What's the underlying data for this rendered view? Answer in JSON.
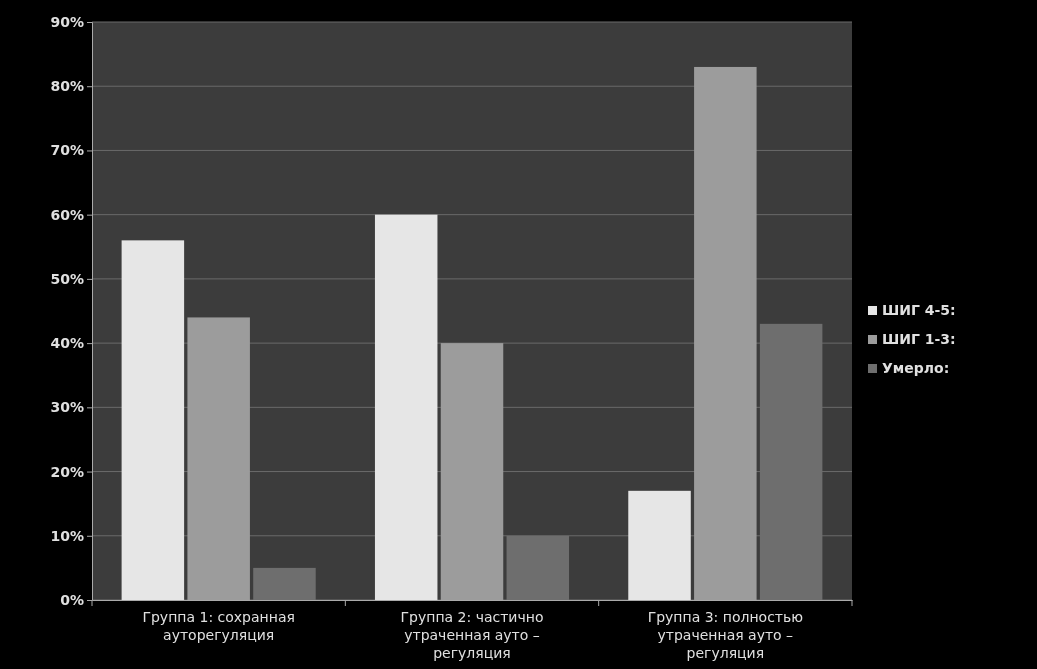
{
  "chart_data": {
    "type": "bar",
    "categories": [
      "Группа 1: сохранная ауторегуляция",
      "Группа 2: частично утраченная ауто – регуляция",
      "Группа 3: полностью утраченная ауто – регуляция"
    ],
    "series": [
      {
        "name": "ШИГ 4-5:",
        "color": "#e6e6e6",
        "values": [
          56,
          60,
          17
        ]
      },
      {
        "name": "ШИГ 1-3:",
        "color": "#9c9c9c",
        "values": [
          44,
          40,
          83
        ]
      },
      {
        "name": "Умерло:",
        "color": "#6e6e6e",
        "values": [
          5,
          10,
          43
        ]
      }
    ],
    "ylim": [
      0,
      90
    ],
    "yticks": [
      {
        "value": 0,
        "label": "0%"
      },
      {
        "value": 10,
        "label": "10%"
      },
      {
        "value": 20,
        "label": "20%"
      },
      {
        "value": 30,
        "label": "30%"
      },
      {
        "value": 40,
        "label": "40%"
      },
      {
        "value": 50,
        "label": "50%"
      },
      {
        "value": 60,
        "label": "60%"
      },
      {
        "value": 70,
        "label": "70%"
      },
      {
        "value": 80,
        "label": "80%"
      },
      {
        "value": 90,
        "label": "90%"
      }
    ],
    "grid": "y",
    "legend": "right"
  }
}
